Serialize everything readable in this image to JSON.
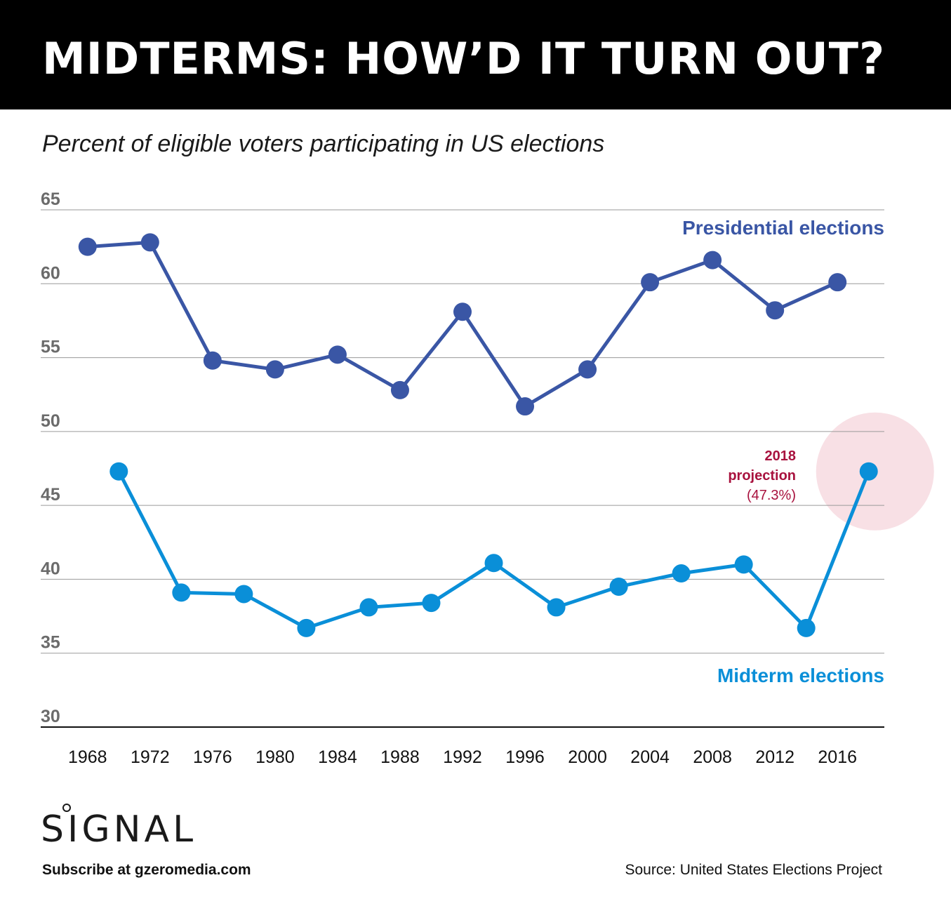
{
  "header": {
    "title": "MIDTERMS: HOW’D IT TURN OUT?",
    "subtitle": "Percent of eligible voters participating in US elections"
  },
  "colors": {
    "presidential": "#3a56a5",
    "midterm": "#0a8fd8",
    "projection": "#a8123e",
    "projection_highlight": "#f8e0e5",
    "tick_label": "#6b6b6b",
    "gridline": "#9a9a9a"
  },
  "chart_data": {
    "type": "line",
    "title": "Percent of eligible voters participating in US elections",
    "xlabel": "",
    "ylabel": "",
    "ylim": [
      30,
      65
    ],
    "yticks": [
      65,
      60,
      55,
      50,
      45,
      40,
      35,
      30
    ],
    "xlim": [
      1965,
      2019
    ],
    "xticks": [
      "1968",
      "1972",
      "1976",
      "1980",
      "1984",
      "1988",
      "1992",
      "1996",
      "2000",
      "2004",
      "2008",
      "2012",
      "2016"
    ],
    "grid": true,
    "series": [
      {
        "name": "Presidential elections",
        "x": [
          1968,
          1972,
          1976,
          1980,
          1984,
          1988,
          1992,
          1996,
          2000,
          2004,
          2008,
          2012,
          2016
        ],
        "values": [
          62.5,
          62.8,
          54.8,
          54.2,
          55.2,
          52.8,
          58.1,
          51.7,
          54.2,
          60.1,
          61.6,
          58.2,
          60.1
        ]
      },
      {
        "name": "Midterm elections",
        "x": [
          1970,
          1974,
          1978,
          1982,
          1986,
          1990,
          1994,
          1998,
          2002,
          2006,
          2010,
          2014,
          2018
        ],
        "values": [
          47.3,
          39.1,
          39.0,
          36.7,
          38.1,
          38.4,
          41.1,
          38.1,
          39.5,
          40.4,
          41.0,
          36.7,
          47.3
        ]
      }
    ],
    "annotation": {
      "lines": [
        "2018",
        "projection",
        "(47.3%)"
      ],
      "x": 2018,
      "value": 47.3
    }
  },
  "footer": {
    "logo_text": "SIGNAL",
    "subscribe": "Subscribe at gzeromedia.com",
    "source": "Source: United States Elections Project"
  }
}
